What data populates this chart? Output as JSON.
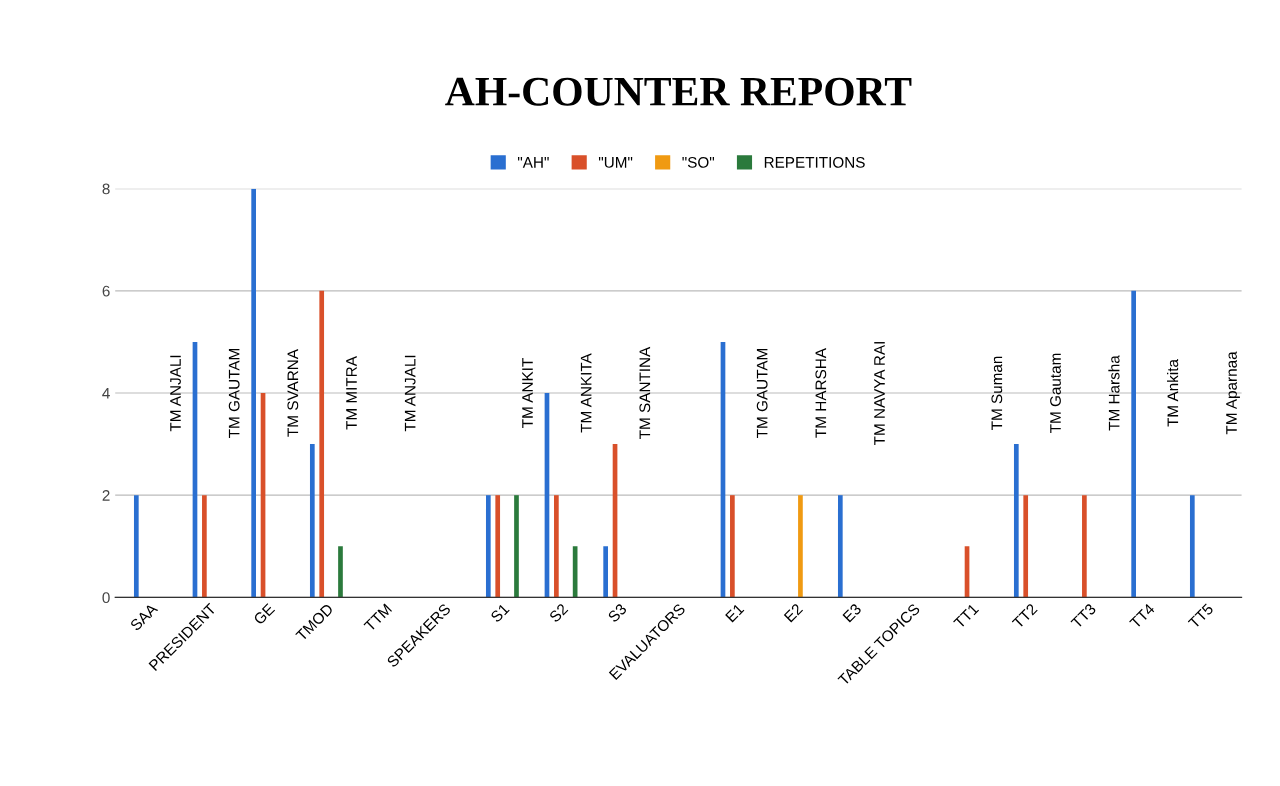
{
  "chart_data": {
    "type": "bar",
    "title": "AH-COUNTER REPORT",
    "categories": [
      "SAA",
      "PRESIDENT",
      "GE",
      "TMOD",
      "TTM",
      "SPEAKERS",
      "S1",
      "S2",
      "S3",
      "EVALUATORS",
      "E1",
      "E2",
      "E3",
      "TABLE TOPICS",
      "TT1",
      "TT2",
      "TT3",
      "TT4",
      "TT5"
    ],
    "series": [
      {
        "name": "\"AH\"",
        "color": "#2a6fd1",
        "values": [
          2,
          5,
          8,
          3,
          null,
          null,
          2,
          4,
          1,
          null,
          5,
          null,
          2,
          null,
          null,
          3,
          null,
          6,
          2
        ]
      },
      {
        "name": "\"UM\"",
        "color": "#d9502a",
        "values": [
          null,
          2,
          4,
          6,
          null,
          null,
          2,
          2,
          3,
          null,
          2,
          null,
          null,
          null,
          1,
          2,
          2,
          null,
          null
        ]
      },
      {
        "name": "\"SO\"",
        "color": "#f09a12",
        "values": [
          null,
          null,
          null,
          null,
          null,
          null,
          null,
          null,
          null,
          null,
          null,
          2,
          null,
          null,
          null,
          null,
          null,
          null,
          null
        ]
      },
      {
        "name": "REPETITIONS",
        "color": "#2b7a3c",
        "values": [
          null,
          null,
          null,
          1,
          null,
          null,
          2,
          1,
          null,
          null,
          null,
          null,
          null,
          null,
          null,
          null,
          null,
          null,
          null
        ]
      }
    ],
    "annotations": [
      "TM ANJALI",
      "TM GAUTAM",
      "TM SVARNA",
      "TM MITRA",
      "TM ANJALI",
      "TM ANKIT",
      "TM ANKITA",
      "TM SANTINA",
      "TM GAUTAM",
      "TM HARSHA",
      "TM NAVYA RAI",
      "TM Suman",
      "TM Gautam",
      "TM Harsha",
      "TM Ankita",
      "TM Aparnaa"
    ],
    "ylim": [
      0,
      8
    ],
    "yticks": [
      0,
      2,
      4,
      6,
      8
    ],
    "grid": "y",
    "legend": "top"
  }
}
